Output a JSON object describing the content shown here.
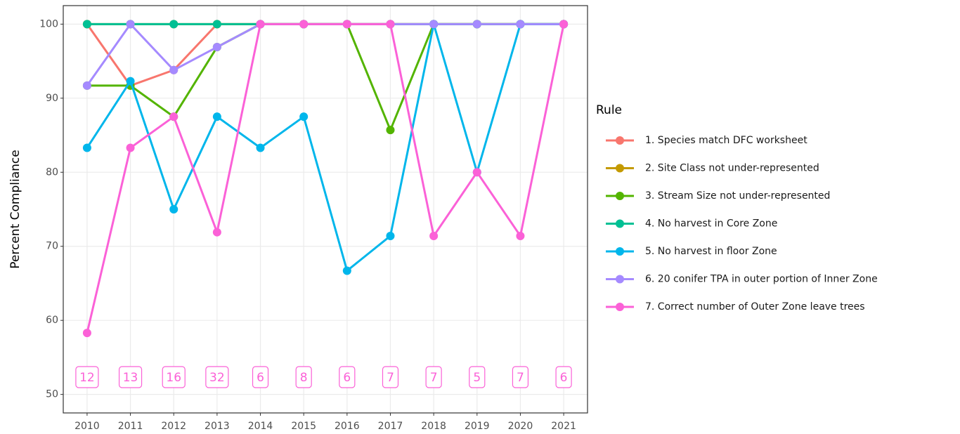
{
  "chart_data": {
    "type": "line",
    "y_label": "Percent Compliance",
    "legend_title": "Rule",
    "x": [
      2010,
      2011,
      2012,
      2013,
      2014,
      2015,
      2016,
      2017,
      2018,
      2019,
      2020,
      2021
    ],
    "xlim": [
      2009.45,
      2021.55
    ],
    "xticks": [
      2010,
      2011,
      2012,
      2013,
      2014,
      2015,
      2016,
      2017,
      2018,
      2019,
      2020,
      2021
    ],
    "ylim": [
      47.5,
      102.5
    ],
    "yticks": [
      50,
      60,
      70,
      80,
      90,
      100
    ],
    "grid": true,
    "series": [
      {
        "name": "1. Species match DFC worksheet",
        "color": "#F8766D",
        "values": [
          100,
          91.7,
          93.8,
          100,
          100,
          100,
          100,
          100,
          100,
          100,
          100,
          100
        ]
      },
      {
        "name": "2. Site Class not under-represented",
        "color": "#C49A00",
        "values": [
          100,
          100,
          100,
          100,
          100,
          100,
          100,
          100,
          100,
          100,
          100,
          100
        ]
      },
      {
        "name": "3. Stream Size not under-represented",
        "color": "#53B400",
        "values": [
          91.7,
          91.7,
          87.5,
          96.9,
          100,
          100,
          100,
          85.7,
          100,
          100,
          100,
          100
        ]
      },
      {
        "name": "4. No harvest in Core Zone",
        "color": "#00C094",
        "values": [
          100,
          100,
          100,
          100,
          100,
          100,
          100,
          100,
          100,
          100,
          100,
          100
        ]
      },
      {
        "name": "5. No harvest in floor Zone",
        "color": "#00B6EB",
        "values": [
          83.3,
          92.3,
          75,
          87.5,
          83.3,
          87.5,
          66.7,
          71.4,
          100,
          80,
          100,
          100
        ]
      },
      {
        "name": "6. 20 conifer TPA in outer portion of Inner Zone",
        "color": "#A58AFF",
        "values": [
          91.7,
          100,
          93.8,
          96.9,
          100,
          100,
          100,
          100,
          100,
          100,
          100,
          100
        ]
      },
      {
        "name": "7. Correct number of Outer Zone leave trees",
        "color": "#FB61D7",
        "values": [
          58.3,
          83.3,
          87.5,
          71.9,
          100,
          100,
          100,
          100,
          71.4,
          80,
          71.4,
          100
        ]
      }
    ],
    "sample_sizes": [
      12,
      13,
      16,
      32,
      6,
      8,
      6,
      7,
      7,
      5,
      7,
      6
    ]
  }
}
